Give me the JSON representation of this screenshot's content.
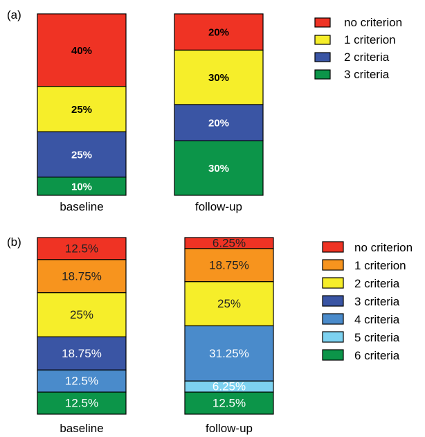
{
  "chart_data": [
    {
      "type": "bar",
      "stacked": true,
      "panel_label": "(a)",
      "categories": [
        "baseline",
        "follow-up"
      ],
      "ylim": [
        0,
        100
      ],
      "series": [
        {
          "name": "no criterion",
          "color": "#ef3324",
          "values": [
            40,
            20
          ],
          "labels": [
            "40%",
            "20%"
          ]
        },
        {
          "name": "1 criterion",
          "color": "#f6ee2a",
          "values": [
            25,
            30
          ],
          "labels": [
            "25%",
            "30%"
          ]
        },
        {
          "name": "2 criteria",
          "color": "#3a55a4",
          "values": [
            25,
            20
          ],
          "labels": [
            "25%",
            "20%"
          ]
        },
        {
          "name": "3 criteria",
          "color": "#0c9549",
          "values": [
            10,
            30
          ],
          "labels": [
            "10%",
            "30%"
          ]
        }
      ],
      "legend_position": "right"
    },
    {
      "type": "bar",
      "stacked": true,
      "panel_label": "(b)",
      "categories": [
        "baseline",
        "follow-up"
      ],
      "ylim": [
        0,
        100
      ],
      "series": [
        {
          "name": "no criterion",
          "color": "#ef3324",
          "values": [
            12.5,
            6.25
          ],
          "labels": [
            "12.5%",
            "6.25%"
          ]
        },
        {
          "name": "1 criterion",
          "color": "#f7941e",
          "values": [
            18.75,
            18.75
          ],
          "labels": [
            "18.75%",
            "18.75%"
          ]
        },
        {
          "name": "2 criteria",
          "color": "#f6ee2a",
          "values": [
            25,
            25
          ],
          "labels": [
            "25%",
            "25%"
          ]
        },
        {
          "name": "3 criteria",
          "color": "#3a55a4",
          "values": [
            18.75,
            0
          ],
          "labels": [
            "18.75%",
            ""
          ]
        },
        {
          "name": "4 criteria",
          "color": "#4a8bcb",
          "values": [
            12.5,
            31.25
          ],
          "labels": [
            "12.5%",
            "31.25%"
          ]
        },
        {
          "name": "5 criteria",
          "color": "#7dd2f0",
          "values": [
            0,
            6.25
          ],
          "labels": [
            "",
            "6.25%"
          ]
        },
        {
          "name": "6 criteria",
          "color": "#0c9549",
          "values": [
            12.5,
            12.5
          ],
          "labels": [
            "12.5%",
            "12.5%"
          ]
        }
      ],
      "legend_position": "right"
    }
  ]
}
